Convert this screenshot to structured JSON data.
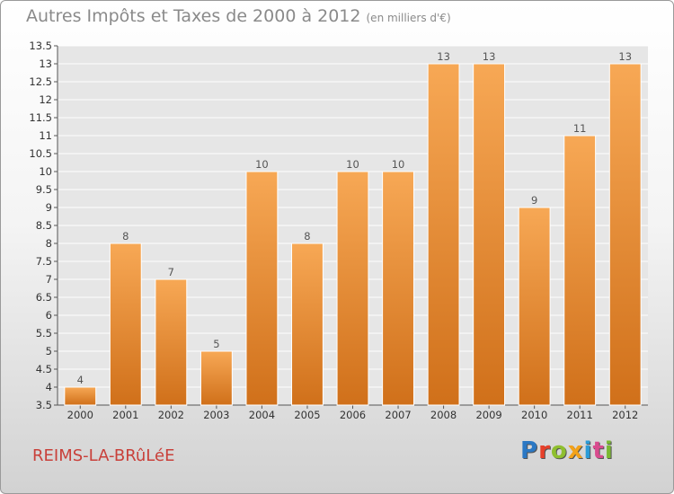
{
  "header": {
    "title": "Autres Impôts et Taxes de 2000 à 2012",
    "subtitle": "(en milliers d'€)"
  },
  "footer": {
    "commune": "REIMS-LA-BRûLéE",
    "brand_letters": [
      "P",
      "r",
      "o",
      "x",
      "i",
      "t",
      "i"
    ],
    "brand_colors": [
      "#2b78c4",
      "#e7402a",
      "#8fbf2f",
      "#f3a21a",
      "#2b9bd7",
      "#d94b8e",
      "#7ab832"
    ]
  },
  "colors": {
    "bar_top": "#f7a855",
    "bar_bottom": "#d0701a",
    "bar_stroke": "#ffffff",
    "plot_bg": "#e6e6e6",
    "grid": "#ffffff"
  },
  "chart_data": {
    "type": "bar",
    "title": "Autres Impôts et Taxes de 2000 à 2012",
    "subtitle": "(en milliers d'€)",
    "categories": [
      "2000",
      "2001",
      "2002",
      "2003",
      "2004",
      "2005",
      "2006",
      "2007",
      "2008",
      "2009",
      "2010",
      "2011",
      "2012"
    ],
    "values": [
      4,
      8,
      7,
      5,
      10,
      8,
      10,
      10,
      13,
      13,
      9,
      11,
      13
    ],
    "data_labels": [
      "4",
      "8",
      "7",
      "5",
      "10",
      "8",
      "10",
      "10",
      "13",
      "13",
      "9",
      "11",
      "13"
    ],
    "ylim": [
      3.5,
      13.5
    ],
    "yticks": [
      "3.5",
      "4",
      "4.5",
      "5",
      "5.5",
      "6",
      "6.5",
      "7",
      "7.5",
      "8",
      "8.5",
      "9",
      "9.5",
      "10",
      "10.5",
      "11",
      "11.5",
      "12",
      "12.5",
      "13",
      "13.5"
    ],
    "grid": true,
    "xlabel": "",
    "ylabel": ""
  }
}
